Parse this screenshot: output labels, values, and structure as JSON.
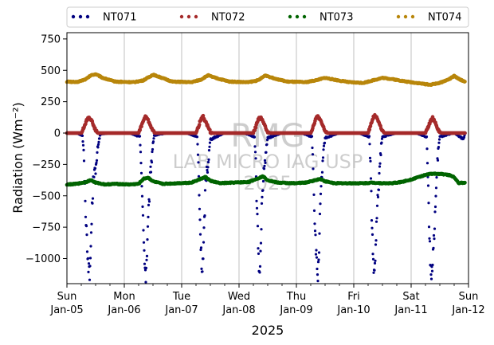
{
  "chart_data": {
    "type": "scatter",
    "xlabel": "2025",
    "ylabel": "Radiation (Wm⁻²)",
    "ylim": [
      -1200,
      800
    ],
    "xlim": [
      "2025-01-05",
      "2025-01-12"
    ],
    "y_ticks": [
      750,
      500,
      250,
      0,
      -250,
      -500,
      -750,
      -1000
    ],
    "y_tick_labels": [
      "750",
      "500",
      "250",
      "0",
      "−250",
      "−500",
      "−750",
      "−1000"
    ],
    "x_ticks": [
      {
        "date": "2025-01-05",
        "day": "Sun",
        "label": "Jan-05"
      },
      {
        "date": "2025-01-06",
        "day": "Mon",
        "label": "Jan-06"
      },
      {
        "date": "2025-01-07",
        "day": "Tue",
        "label": "Jan-07"
      },
      {
        "date": "2025-01-08",
        "day": "Wed",
        "label": "Jan-08"
      },
      {
        "date": "2025-01-09",
        "day": "Thu",
        "label": "Jan-09"
      },
      {
        "date": "2025-01-10",
        "day": "Fri",
        "label": "Jan-10"
      },
      {
        "date": "2025-01-11",
        "day": "Sat",
        "label": "Jan-11"
      },
      {
        "date": "2025-01-12",
        "day": "Sun",
        "label": "Jan-12"
      }
    ],
    "grid": "vertical",
    "legend": "top, outside plot, 4 columns",
    "watermark": [
      "RMG",
      "LAB MICRO IAG USP",
      "2025"
    ],
    "series": [
      {
        "name": "NT071",
        "color": "#000080",
        "points": [
          [
            "2025-01-05 01:00",
            0
          ],
          [
            "2025-01-05 04:00",
            0
          ],
          [
            "2025-01-05 06:30",
            -20
          ],
          [
            "2025-01-05 07:00",
            -150
          ],
          [
            "2025-01-05 07:30",
            -450
          ],
          [
            "2025-01-05 08:00",
            -700
          ],
          [
            "2025-01-05 08:30",
            -900
          ],
          [
            "2025-01-05 09:00",
            -1050
          ],
          [
            "2025-01-05 09:30",
            -1150
          ],
          [
            "2025-01-05 10:00",
            -900
          ],
          [
            "2025-01-05 10:30",
            -600
          ],
          [
            "2025-01-05 11:00",
            -400
          ],
          [
            "2025-01-05 11:30",
            -250
          ],
          [
            "2025-01-05 12:00",
            -350
          ],
          [
            "2025-01-05 12:30",
            -200
          ],
          [
            "2025-01-05 13:00",
            -100
          ],
          [
            "2025-01-05 13:30",
            -50
          ],
          [
            "2025-01-05 14:00",
            -10
          ],
          [
            "2025-01-05 18:00",
            0
          ],
          [
            "2025-01-06 02:00",
            0
          ],
          [
            "2025-01-06 06:30",
            -30
          ],
          [
            "2025-01-06 07:00",
            -200
          ],
          [
            "2025-01-06 07:30",
            -500
          ],
          [
            "2025-01-06 08:00",
            -800
          ],
          [
            "2025-01-06 08:30",
            -1000
          ],
          [
            "2025-01-06 09:00",
            -1150
          ],
          [
            "2025-01-06 09:30",
            -950
          ],
          [
            "2025-01-06 10:00",
            -700
          ],
          [
            "2025-01-06 10:30",
            -500
          ],
          [
            "2025-01-06 11:00",
            -300
          ],
          [
            "2025-01-06 11:30",
            -200
          ],
          [
            "2025-01-06 12:00",
            -80
          ],
          [
            "2025-01-06 12:30",
            -20
          ],
          [
            "2025-01-06 18:00",
            0
          ],
          [
            "2025-01-07 02:00",
            0
          ],
          [
            "2025-01-07 06:30",
            -30
          ],
          [
            "2025-01-07 07:00",
            -250
          ],
          [
            "2025-01-07 07:30",
            -600
          ],
          [
            "2025-01-07 08:00",
            -900
          ],
          [
            "2025-01-07 08:30",
            -1100
          ],
          [
            "2025-01-07 09:00",
            -1000
          ],
          [
            "2025-01-07 09:30",
            -700
          ],
          [
            "2025-01-07 10:00",
            -400
          ],
          [
            "2025-01-07 10:30",
            -300
          ],
          [
            "2025-01-07 11:00",
            -250
          ],
          [
            "2025-01-07 11:30",
            -150
          ],
          [
            "2025-01-07 12:00",
            -50
          ],
          [
            "2025-01-07 18:00",
            0
          ],
          [
            "2025-01-08 02:00",
            0
          ],
          [
            "2025-01-08 06:30",
            -30
          ],
          [
            "2025-01-08 07:00",
            -250
          ],
          [
            "2025-01-08 07:30",
            -600
          ],
          [
            "2025-01-08 08:00",
            -900
          ],
          [
            "2025-01-08 08:30",
            -1150
          ],
          [
            "2025-01-08 09:00",
            -950
          ],
          [
            "2025-01-08 09:30",
            -600
          ],
          [
            "2025-01-08 10:00",
            -400
          ],
          [
            "2025-01-08 10:30",
            -300
          ],
          [
            "2025-01-08 11:00",
            -200
          ],
          [
            "2025-01-08 11:30",
            -100
          ],
          [
            "2025-01-08 12:00",
            -40
          ],
          [
            "2025-01-08 18:00",
            0
          ],
          [
            "2025-01-09 02:00",
            0
          ],
          [
            "2025-01-09 06:30",
            -30
          ],
          [
            "2025-01-09 07:00",
            -250
          ],
          [
            "2025-01-09 07:30",
            -600
          ],
          [
            "2025-01-09 08:00",
            -850
          ],
          [
            "2025-01-09 08:30",
            -1050
          ],
          [
            "2025-01-09 09:00",
            -1150
          ],
          [
            "2025-01-09 09:30",
            -900
          ],
          [
            "2025-01-09 10:00",
            -600
          ],
          [
            "2025-01-09 10:30",
            -400
          ],
          [
            "2025-01-09 11:00",
            -250
          ],
          [
            "2025-01-09 11:30",
            -120
          ],
          [
            "2025-01-09 12:00",
            -40
          ],
          [
            "2025-01-09 18:00",
            0
          ],
          [
            "2025-01-10 02:00",
            0
          ],
          [
            "2025-01-10 06:30",
            -30
          ],
          [
            "2025-01-10 07:00",
            -250
          ],
          [
            "2025-01-10 07:30",
            -650
          ],
          [
            "2025-01-10 08:00",
            -950
          ],
          [
            "2025-01-10 08:30",
            -1150
          ],
          [
            "2025-01-10 09:00",
            -1000
          ],
          [
            "2025-01-10 09:30",
            -750
          ],
          [
            "2025-01-10 10:00",
            -550
          ],
          [
            "2025-01-10 10:30",
            -400
          ],
          [
            "2025-01-10 11:00",
            -250
          ],
          [
            "2025-01-10 11:30",
            -100
          ],
          [
            "2025-01-10 12:00",
            -30
          ],
          [
            "2025-01-10 18:00",
            0
          ],
          [
            "2025-01-11 02:00",
            0
          ],
          [
            "2025-01-11 06:30",
            -30
          ],
          [
            "2025-01-11 07:00",
            -300
          ],
          [
            "2025-01-11 07:30",
            -700
          ],
          [
            "2025-01-11 08:00",
            -1000
          ],
          [
            "2025-01-11 08:30",
            -1150
          ],
          [
            "2025-01-11 09:00",
            -1050
          ],
          [
            "2025-01-11 09:30",
            -850
          ],
          [
            "2025-01-11 10:00",
            -650
          ],
          [
            "2025-01-11 10:30",
            -450
          ],
          [
            "2025-01-11 11:00",
            -250
          ],
          [
            "2025-01-11 11:30",
            -100
          ],
          [
            "2025-01-11 12:00",
            -30
          ],
          [
            "2025-01-11 18:00",
            0
          ],
          [
            "2025-01-11 22:00",
            -50
          ],
          [
            "2025-01-11 22:30",
            0
          ]
        ]
      },
      {
        "name": "NT072",
        "color": "#a52a2a",
        "points": [
          [
            "2025-01-05 00:00",
            0
          ],
          [
            "2025-01-05 06:00",
            0
          ],
          [
            "2025-01-05 07:00",
            40
          ],
          [
            "2025-01-05 08:00",
            90
          ],
          [
            "2025-01-05 09:00",
            130
          ],
          [
            "2025-01-05 10:00",
            110
          ],
          [
            "2025-01-05 11:00",
            70
          ],
          [
            "2025-01-05 12:00",
            20
          ],
          [
            "2025-01-05 13:00",
            0
          ],
          [
            "2025-01-06 06:00",
            0
          ],
          [
            "2025-01-06 07:00",
            50
          ],
          [
            "2025-01-06 08:00",
            100
          ],
          [
            "2025-01-06 09:00",
            135
          ],
          [
            "2025-01-06 10:00",
            100
          ],
          [
            "2025-01-06 11:00",
            60
          ],
          [
            "2025-01-06 12:00",
            15
          ],
          [
            "2025-01-06 13:00",
            0
          ],
          [
            "2025-01-07 06:00",
            0
          ],
          [
            "2025-01-07 07:00",
            50
          ],
          [
            "2025-01-07 08:00",
            110
          ],
          [
            "2025-01-07 09:00",
            130
          ],
          [
            "2025-01-07 10:00",
            90
          ],
          [
            "2025-01-07 11:00",
            50
          ],
          [
            "2025-01-07 12:00",
            10
          ],
          [
            "2025-01-07 13:00",
            0
          ],
          [
            "2025-01-08 06:00",
            0
          ],
          [
            "2025-01-08 07:00",
            50
          ],
          [
            "2025-01-08 08:00",
            110
          ],
          [
            "2025-01-08 09:00",
            130
          ],
          [
            "2025-01-08 10:00",
            90
          ],
          [
            "2025-01-08 11:00",
            50
          ],
          [
            "2025-01-08 12:00",
            10
          ],
          [
            "2025-01-08 13:00",
            0
          ],
          [
            "2025-01-09 06:00",
            0
          ],
          [
            "2025-01-09 07:00",
            50
          ],
          [
            "2025-01-09 08:00",
            110
          ],
          [
            "2025-01-09 09:00",
            135
          ],
          [
            "2025-01-09 10:00",
            100
          ],
          [
            "2025-01-09 11:00",
            60
          ],
          [
            "2025-01-09 12:00",
            15
          ],
          [
            "2025-01-09 13:00",
            0
          ],
          [
            "2025-01-10 06:00",
            0
          ],
          [
            "2025-01-10 07:00",
            60
          ],
          [
            "2025-01-10 08:00",
            120
          ],
          [
            "2025-01-10 09:00",
            140
          ],
          [
            "2025-01-10 10:00",
            110
          ],
          [
            "2025-01-10 11:00",
            60
          ],
          [
            "2025-01-10 12:00",
            15
          ],
          [
            "2025-01-10 13:00",
            0
          ],
          [
            "2025-01-11 06:00",
            0
          ],
          [
            "2025-01-11 07:00",
            40
          ],
          [
            "2025-01-11 08:00",
            90
          ],
          [
            "2025-01-11 09:00",
            120
          ],
          [
            "2025-01-11 10:00",
            90
          ],
          [
            "2025-01-11 11:00",
            40
          ],
          [
            "2025-01-11 12:00",
            5
          ],
          [
            "2025-01-11 13:00",
            0
          ],
          [
            "2025-01-11 22:30",
            0
          ]
        ]
      },
      {
        "name": "NT073",
        "color": "#006400",
        "points": [
          [
            "2025-01-05 00:00",
            -410
          ],
          [
            "2025-01-05 04:00",
            -405
          ],
          [
            "2025-01-05 08:00",
            -390
          ],
          [
            "2025-01-05 10:00",
            -375
          ],
          [
            "2025-01-05 12:00",
            -395
          ],
          [
            "2025-01-05 16:00",
            -410
          ],
          [
            "2025-01-05 20:00",
            -405
          ],
          [
            "2025-01-06 02:00",
            -410
          ],
          [
            "2025-01-06 06:00",
            -405
          ],
          [
            "2025-01-06 08:00",
            -365
          ],
          [
            "2025-01-06 10:00",
            -355
          ],
          [
            "2025-01-06 12:00",
            -385
          ],
          [
            "2025-01-06 16:00",
            -405
          ],
          [
            "2025-01-06 22:00",
            -400
          ],
          [
            "2025-01-07 04:00",
            -395
          ],
          [
            "2025-01-07 08:00",
            -365
          ],
          [
            "2025-01-07 10:00",
            -350
          ],
          [
            "2025-01-07 12:00",
            -380
          ],
          [
            "2025-01-07 16:00",
            -400
          ],
          [
            "2025-01-07 22:00",
            -395
          ],
          [
            "2025-01-08 04:00",
            -390
          ],
          [
            "2025-01-08 08:00",
            -360
          ],
          [
            "2025-01-08 10:00",
            -345
          ],
          [
            "2025-01-08 12:00",
            -375
          ],
          [
            "2025-01-08 16:00",
            -395
          ],
          [
            "2025-01-08 22:00",
            -400
          ],
          [
            "2025-01-09 04:00",
            -395
          ],
          [
            "2025-01-09 08:00",
            -375
          ],
          [
            "2025-01-09 10:00",
            -365
          ],
          [
            "2025-01-09 12:00",
            -385
          ],
          [
            "2025-01-09 16:00",
            -400
          ],
          [
            "2025-01-09 22:00",
            -400
          ],
          [
            "2025-01-10 04:00",
            -400
          ],
          [
            "2025-01-10 08:00",
            -395
          ],
          [
            "2025-01-10 12:00",
            -400
          ],
          [
            "2025-01-10 16:00",
            -400
          ],
          [
            "2025-01-10 20:00",
            -390
          ],
          [
            "2025-01-11 00:00",
            -370
          ],
          [
            "2025-01-11 04:00",
            -345
          ],
          [
            "2025-01-11 08:00",
            -325
          ],
          [
            "2025-01-11 12:00",
            -325
          ],
          [
            "2025-01-11 16:00",
            -335
          ],
          [
            "2025-01-11 18:00",
            -350
          ],
          [
            "2025-01-11 20:00",
            -400
          ],
          [
            "2025-01-11 22:30",
            -395
          ]
        ]
      },
      {
        "name": "NT074",
        "color": "#b8860b",
        "points": [
          [
            "2025-01-05 00:00",
            410
          ],
          [
            "2025-01-05 04:00",
            405
          ],
          [
            "2025-01-05 08:00",
            430
          ],
          [
            "2025-01-05 10:00",
            460
          ],
          [
            "2025-01-05 12:00",
            470
          ],
          [
            "2025-01-05 15:00",
            440
          ],
          [
            "2025-01-05 20:00",
            410
          ],
          [
            "2025-01-06 04:00",
            405
          ],
          [
            "2025-01-06 08:00",
            420
          ],
          [
            "2025-01-06 12:00",
            465
          ],
          [
            "2025-01-06 15:00",
            445
          ],
          [
            "2025-01-06 20:00",
            410
          ],
          [
            "2025-01-07 04:00",
            405
          ],
          [
            "2025-01-07 08:00",
            425
          ],
          [
            "2025-01-07 11:00",
            460
          ],
          [
            "2025-01-07 14:00",
            440
          ],
          [
            "2025-01-07 20:00",
            410
          ],
          [
            "2025-01-08 04:00",
            405
          ],
          [
            "2025-01-08 08:00",
            420
          ],
          [
            "2025-01-08 11:00",
            460
          ],
          [
            "2025-01-08 14:00",
            440
          ],
          [
            "2025-01-08 20:00",
            410
          ],
          [
            "2025-01-09 04:00",
            405
          ],
          [
            "2025-01-09 08:00",
            420
          ],
          [
            "2025-01-09 12:00",
            440
          ],
          [
            "2025-01-09 16:00",
            425
          ],
          [
            "2025-01-09 22:00",
            405
          ],
          [
            "2025-01-10 04:00",
            400
          ],
          [
            "2025-01-10 08:00",
            420
          ],
          [
            "2025-01-10 12:00",
            440
          ],
          [
            "2025-01-10 16:00",
            430
          ],
          [
            "2025-01-10 22:00",
            410
          ],
          [
            "2025-01-11 04:00",
            395
          ],
          [
            "2025-01-11 08:00",
            385
          ],
          [
            "2025-01-11 12:00",
            400
          ],
          [
            "2025-01-11 16:00",
            430
          ],
          [
            "2025-01-11 18:00",
            455
          ],
          [
            "2025-01-11 20:00",
            430
          ],
          [
            "2025-01-11 22:30",
            410
          ]
        ]
      }
    ]
  }
}
